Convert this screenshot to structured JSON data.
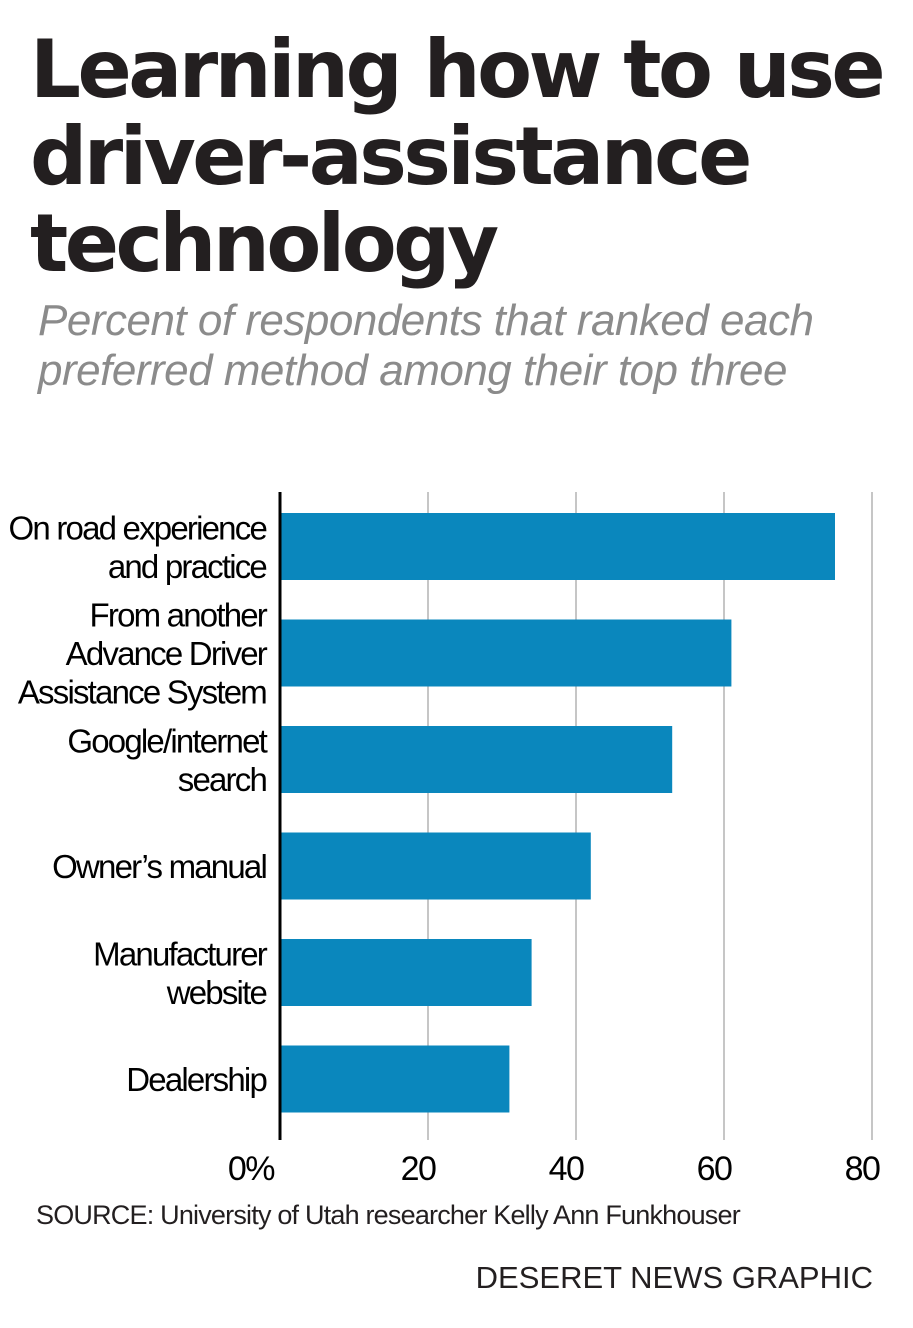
{
  "title": "Learning how to use driver-assistance technology",
  "subtitle": "Percent of respondents that ranked each preferred method among their top three",
  "chart_data": {
    "type": "bar",
    "orientation": "horizontal",
    "categories": [
      [
        "On road experience",
        "and practice"
      ],
      [
        "From another",
        "Advance Driver",
        "Assistance System"
      ],
      [
        "Google/internet",
        "search"
      ],
      [
        "Owner’s manual"
      ],
      [
        "Manufacturer",
        "website"
      ],
      [
        "Dealership"
      ]
    ],
    "values": [
      75,
      61,
      53,
      42,
      34,
      31
    ],
    "xlim": [
      0,
      80
    ],
    "xticks": [
      0,
      20,
      40,
      60,
      80
    ],
    "xtick_labels": [
      "0%",
      "20",
      "40",
      "60",
      "80"
    ],
    "grid": true,
    "bar_color": "#0a87bd",
    "grid_color": "#b3b3b3",
    "axis_color": "#000000"
  },
  "source": "SOURCE: University of Utah researcher Kelly Ann Funkhouser",
  "credit": "DESERET NEWS GRAPHIC"
}
